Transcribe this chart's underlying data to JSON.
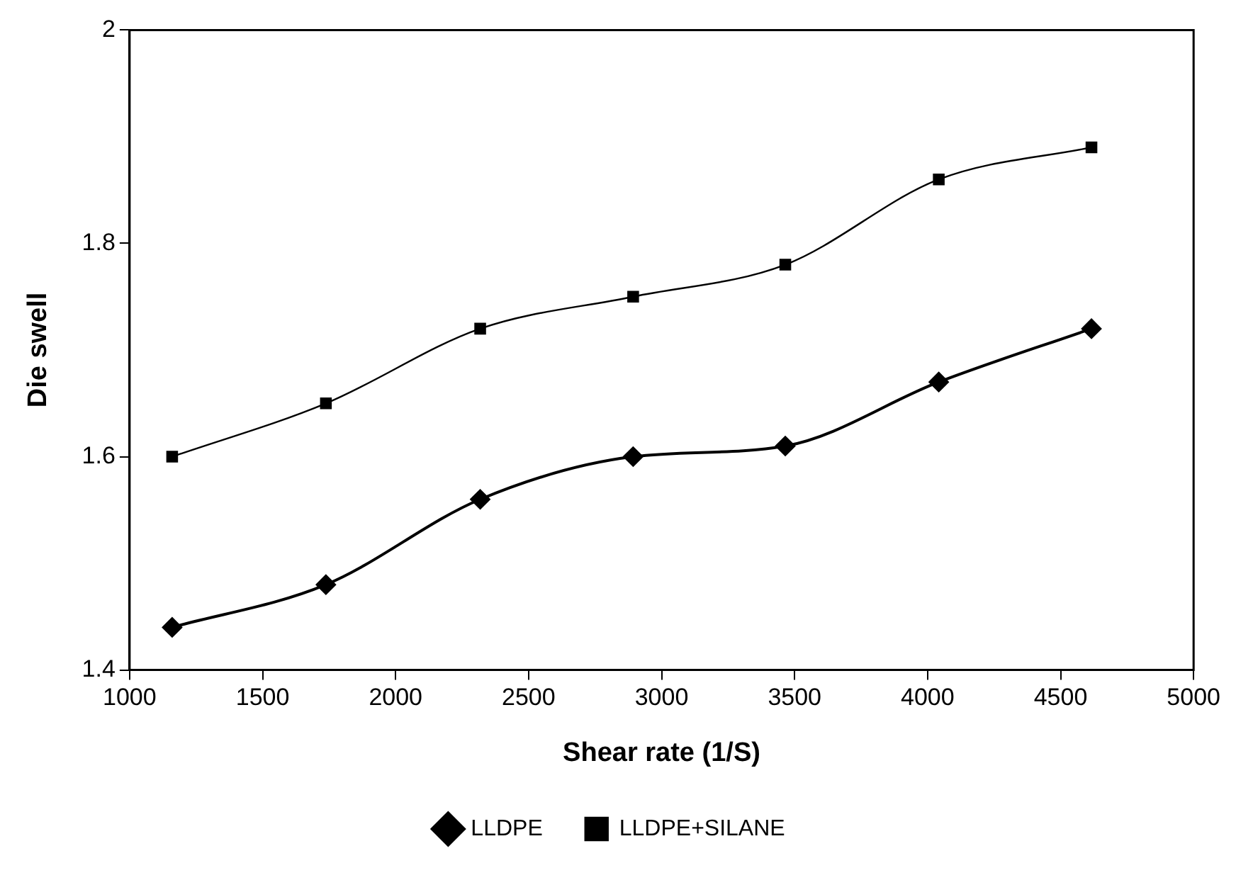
{
  "chart_data": {
    "type": "line",
    "xlabel": "Shear rate (1/S)",
    "ylabel": "Die swell",
    "x": [
      1160,
      1738,
      2318,
      2893,
      3465,
      4042,
      4616
    ],
    "series": [
      {
        "name": "LLDPE",
        "color": "#000000",
        "marker": "diamond",
        "values": [
          1.44,
          1.48,
          1.56,
          1.6,
          1.61,
          1.67,
          1.72
        ]
      },
      {
        "name": "LLDPE+SILANE",
        "color": "#000000",
        "marker": "square",
        "values": [
          1.6,
          1.65,
          1.72,
          1.75,
          1.78,
          1.86,
          1.89
        ]
      }
    ],
    "xlim": [
      1000,
      5000
    ],
    "xticks": [
      1000,
      1500,
      2000,
      2500,
      3000,
      3500,
      4000,
      4500,
      5000
    ],
    "ylim": [
      1.4,
      2
    ],
    "yticks": [
      1.4,
      1.6,
      1.8,
      2
    ],
    "grid": false,
    "legend": "bottom"
  }
}
